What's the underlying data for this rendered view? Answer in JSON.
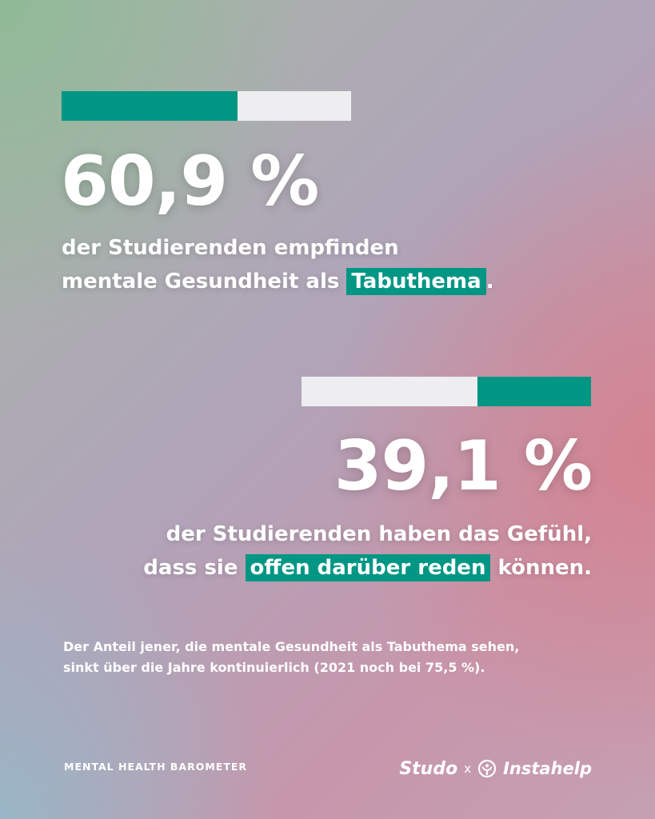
{
  "stats": [
    {
      "progress": 0.609,
      "value": "60,9 %",
      "line1": "der Studierenden empfinden",
      "line2_before": "mentale Gesundheit als ",
      "line2_highlight": "Tabuthema",
      "line2_after": "."
    },
    {
      "progress": 0.391,
      "value": "39,1 %",
      "line1": "der Studierenden haben das Gefühl,",
      "line2_before": "dass sie ",
      "line2_highlight": "offen darüber reden",
      "line2_after": " können."
    }
  ],
  "note": {
    "line1": "Der Anteil jener, die mentale Gesundheit als Tabuthema sehen,",
    "line2": "sinkt über die Jahre kontinuierlich (2021 noch bei 75,5 %)."
  },
  "footer": {
    "label": "MENTAL HEALTH BAROMETER",
    "brand_studo": "Studo",
    "brand_x": "x",
    "brand_instahelp": "Instahelp",
    "logo_icon": "instahelp-logo-icon"
  },
  "colors": {
    "accent": "#009684",
    "bar_track": "#eeeef0",
    "text": "#ffffff"
  }
}
